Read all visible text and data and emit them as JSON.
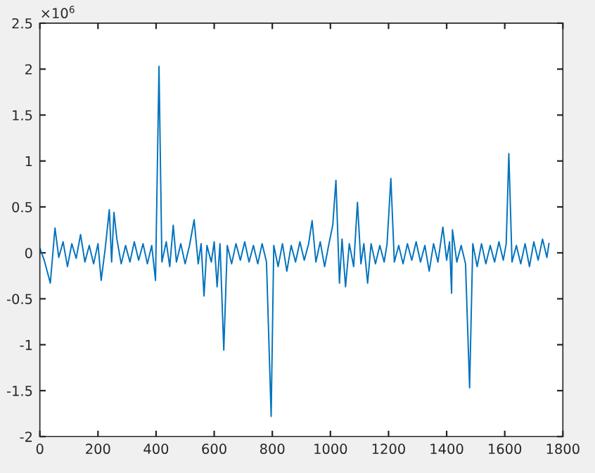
{
  "chart_data": {
    "type": "line",
    "annotations": [
      "×10$^{6}$"
    ],
    "xlim": [
      0,
      1800
    ],
    "xticks": [
      0,
      200,
      400,
      600,
      800,
      1000,
      1200,
      1400,
      1600,
      1800
    ],
    "ylim": [
      -2,
      2.5
    ],
    "yticks": [
      -2,
      -1.5,
      -1,
      -0.5,
      0,
      0.5,
      1,
      1.5,
      2,
      2.5
    ],
    "grid": false,
    "legend": false,
    "series": [
      {
        "color": "#0072bd",
        "x": [
          0,
          15,
          36,
          52,
          65,
          80,
          95,
          110,
          125,
          140,
          155,
          170,
          185,
          200,
          211,
          225,
          239,
          247,
          255,
          265,
          280,
          295,
          310,
          325,
          340,
          355,
          370,
          385,
          398,
          410,
          420,
          435,
          447,
          459,
          470,
          485,
          500,
          515,
          531,
          545,
          555,
          565,
          575,
          590,
          600,
          610,
          620,
          633,
          645,
          660,
          675,
          690,
          705,
          720,
          735,
          750,
          765,
          780,
          796,
          805,
          820,
          835,
          850,
          865,
          880,
          895,
          910,
          925,
          937,
          950,
          965,
          980,
          995,
          1008,
          1019,
          1031,
          1040,
          1052,
          1065,
          1080,
          1093,
          1105,
          1115,
          1128,
          1140,
          1155,
          1170,
          1185,
          1195,
          1208,
          1220,
          1235,
          1250,
          1265,
          1280,
          1295,
          1310,
          1325,
          1340,
          1355,
          1370,
          1387,
          1400,
          1410,
          1417,
          1420,
          1435,
          1450,
          1465,
          1479,
          1490,
          1505,
          1520,
          1535,
          1550,
          1565,
          1580,
          1595,
          1605,
          1614,
          1625,
          1640,
          1655,
          1670,
          1685,
          1700,
          1715,
          1730,
          1745,
          1752
        ],
        "values": [
          0.05,
          -0.08,
          -0.33,
          0.27,
          -0.05,
          0.12,
          -0.15,
          0.1,
          -0.06,
          0.2,
          -0.1,
          0.08,
          -0.12,
          0.1,
          -0.3,
          0.05,
          0.47,
          -0.1,
          0.44,
          0.15,
          -0.12,
          0.08,
          -0.1,
          0.12,
          -0.08,
          0.1,
          -0.12,
          0.08,
          -0.3,
          2.03,
          -0.1,
          0.12,
          -0.15,
          0.3,
          -0.1,
          0.1,
          -0.12,
          0.08,
          0.36,
          -0.12,
          0.1,
          -0.47,
          0.08,
          -0.1,
          0.12,
          -0.37,
          0.1,
          -1.06,
          0.08,
          -0.12,
          0.1,
          -0.08,
          0.12,
          -0.1,
          0.08,
          -0.12,
          0.1,
          -0.1,
          -1.78,
          0.08,
          -0.15,
          0.1,
          -0.2,
          0.08,
          -0.1,
          0.12,
          -0.08,
          0.1,
          0.35,
          -0.1,
          0.12,
          -0.15,
          0.1,
          0.3,
          0.79,
          -0.33,
          0.15,
          -0.37,
          0.1,
          -0.15,
          0.55,
          -0.12,
          0.1,
          -0.33,
          0.1,
          -0.12,
          0.08,
          -0.1,
          0.1,
          0.81,
          -0.1,
          0.08,
          -0.12,
          0.1,
          -0.08,
          0.12,
          -0.1,
          0.08,
          -0.2,
          0.1,
          -0.1,
          0.28,
          -0.08,
          0.12,
          -0.44,
          0.25,
          -0.1,
          0.08,
          -0.12,
          -1.47,
          0.1,
          -0.15,
          0.1,
          -0.12,
          0.08,
          -0.1,
          0.12,
          -0.08,
          0.1,
          1.08,
          -0.1,
          0.08,
          -0.12,
          0.1,
          -0.15,
          0.12,
          -0.08,
          0.15,
          -0.05,
          0.1
        ]
      }
    ]
  }
}
